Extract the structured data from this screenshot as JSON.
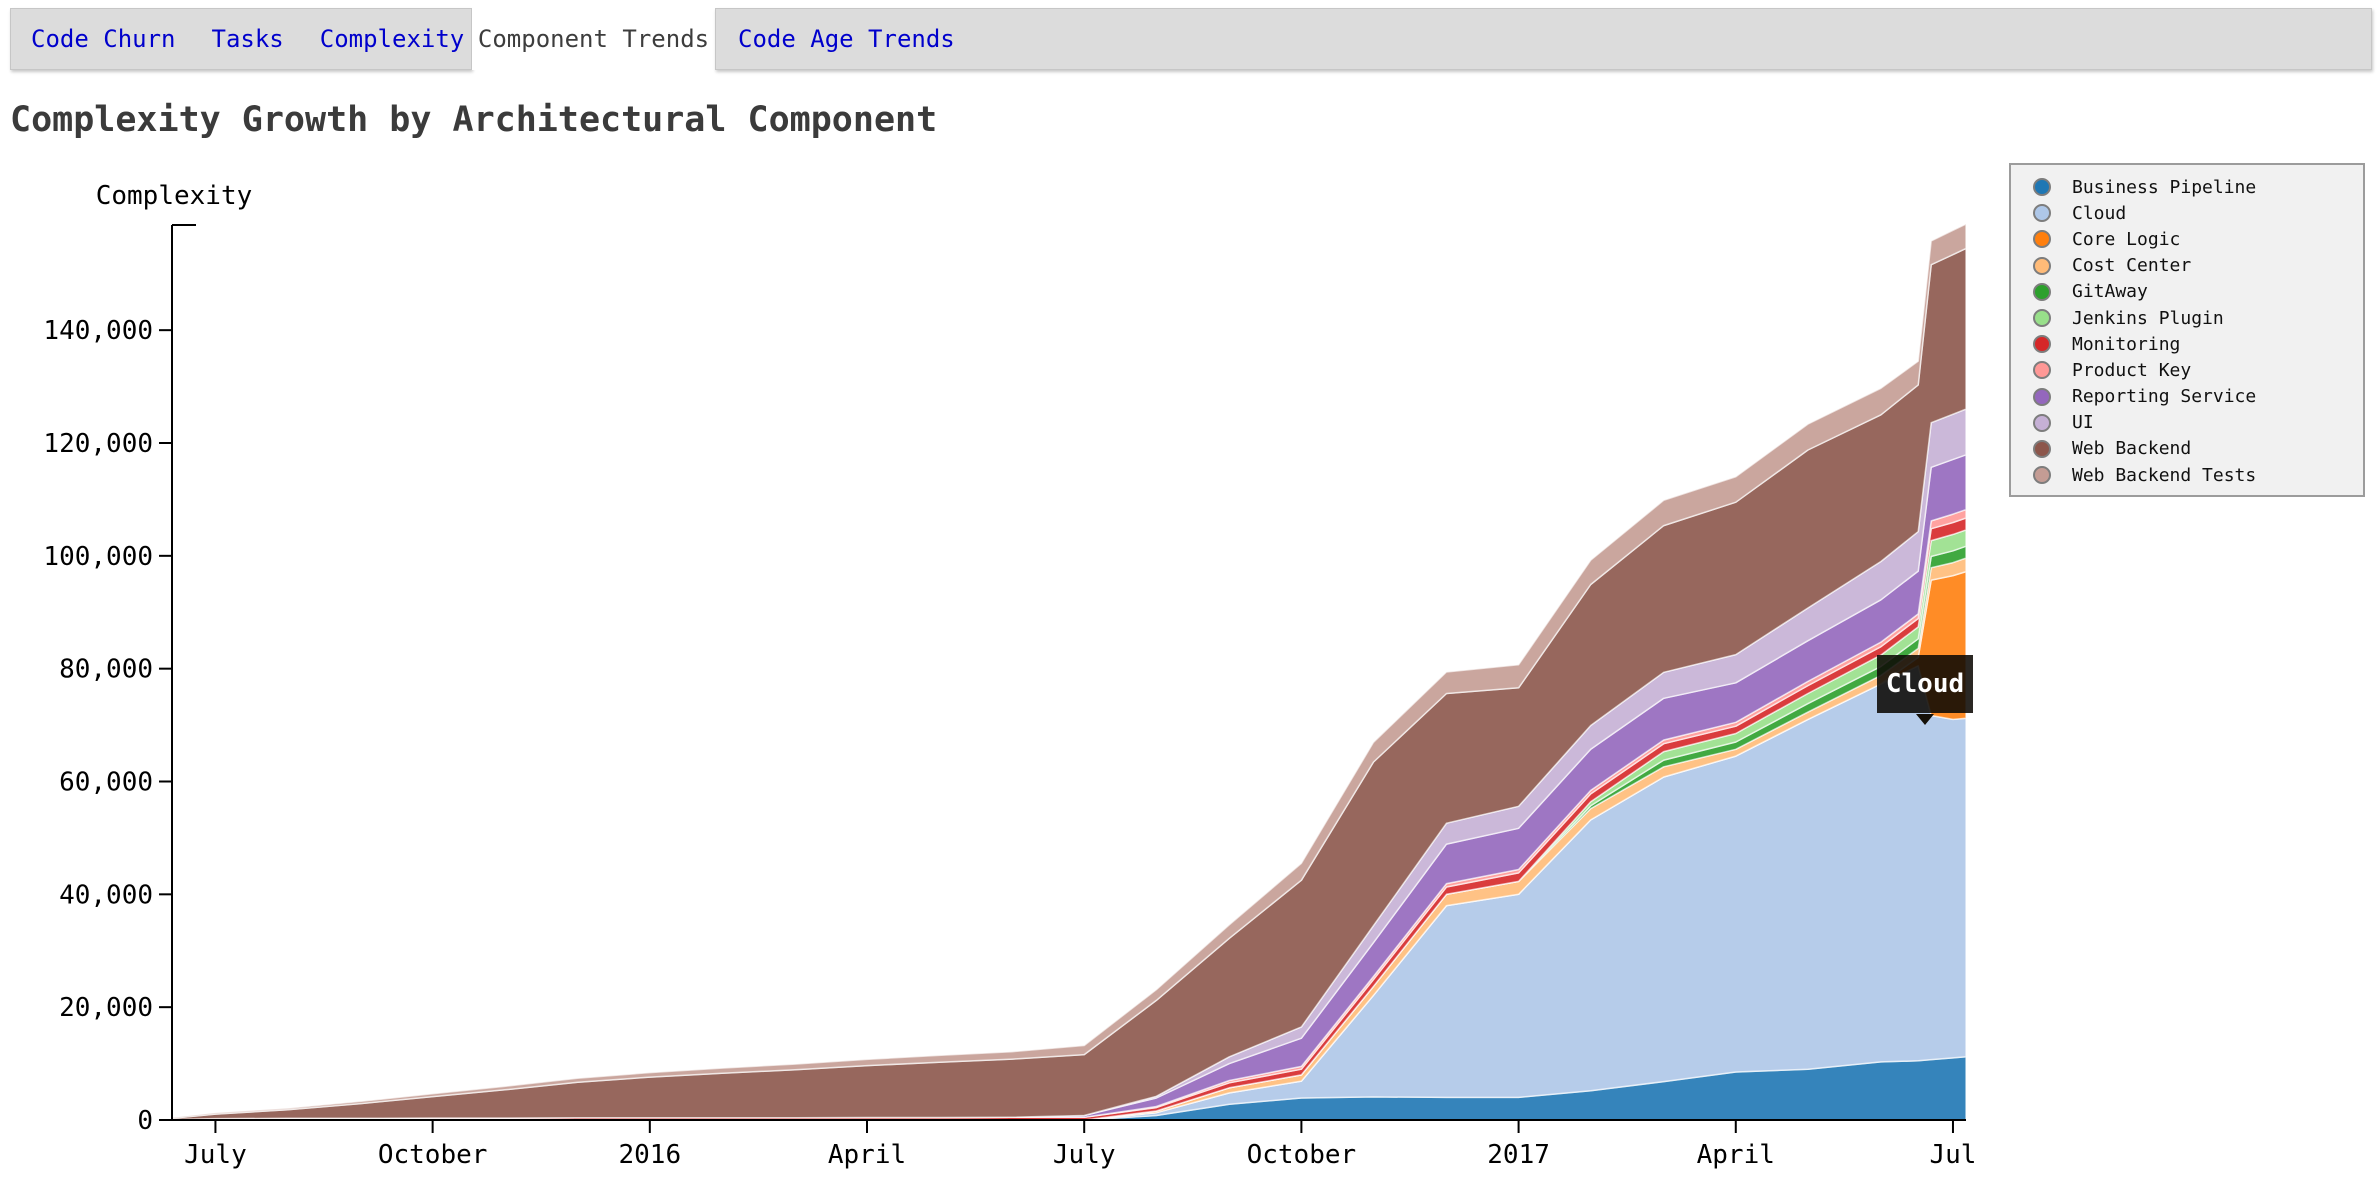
{
  "tabs": {
    "items": [
      {
        "label": "Code Churn",
        "active": false
      },
      {
        "label": "Tasks",
        "active": false
      },
      {
        "label": "Complexity",
        "active": false
      },
      {
        "label": "Component Trends",
        "active": true
      },
      {
        "label": "Code Age Trends",
        "active": false
      }
    ]
  },
  "title": "Complexity Growth by Architectural Component",
  "tooltip": {
    "label": "Cloud"
  },
  "colors": {
    "tab_link": "#0000cc",
    "tab_active_text": "#3d3d3d",
    "tab_bar_bg": "#dcdcdc",
    "axis": "#000000",
    "tooltip_bg": "#151008",
    "legend_bg": "#f1f1f1",
    "legend_border": "#9c9c9c"
  },
  "chart_data": {
    "type": "area",
    "stacked": true,
    "title": "Complexity Growth by Architectural Component",
    "ylabel": "Complexity",
    "xlabel": "",
    "grid": false,
    "legend_position": "top-right",
    "ylim": [
      0,
      158640
    ],
    "xlim": [
      2015.45,
      2017.515
    ],
    "x": [
      2015.45,
      2015.5,
      2015.583,
      2015.667,
      2015.75,
      2015.833,
      2015.917,
      2016.0,
      2016.083,
      2016.167,
      2016.25,
      2016.333,
      2016.417,
      2016.5,
      2016.583,
      2016.667,
      2016.75,
      2016.833,
      2016.917,
      2017.0,
      2017.083,
      2017.167,
      2017.25,
      2017.333,
      2017.417,
      2017.46,
      2017.475,
      2017.5,
      2017.515
    ],
    "x_ticks": [
      {
        "value": 2015.5,
        "label": "July"
      },
      {
        "value": 2015.75,
        "label": "October"
      },
      {
        "value": 2016.0,
        "label": "2016"
      },
      {
        "value": 2016.25,
        "label": "April"
      },
      {
        "value": 2016.5,
        "label": "July"
      },
      {
        "value": 2016.75,
        "label": "October"
      },
      {
        "value": 2017.0,
        "label": "2017"
      },
      {
        "value": 2017.25,
        "label": "April"
      },
      {
        "value": 2017.5,
        "label": "Jul"
      }
    ],
    "y_ticks": [
      {
        "value": 0,
        "label": "0"
      },
      {
        "value": 20000,
        "label": "20,000"
      },
      {
        "value": 40000,
        "label": "40,000"
      },
      {
        "value": 60000,
        "label": "60,000"
      },
      {
        "value": 80000,
        "label": "80,000"
      },
      {
        "value": 100000,
        "label": "100,000"
      },
      {
        "value": 120000,
        "label": "120,000"
      },
      {
        "value": 140000,
        "label": "140,000"
      }
    ],
    "series": [
      {
        "name": "Business Pipeline",
        "color": "#1f77b4",
        "values": [
          0,
          0,
          0,
          0,
          0,
          0,
          0,
          0,
          0,
          0,
          0,
          0,
          0,
          0,
          800,
          2800,
          3900,
          4100,
          4000,
          4000,
          5200,
          6800,
          8500,
          9000,
          10300,
          10500,
          10700,
          11000,
          11200
        ]
      },
      {
        "name": "Cloud",
        "color": "#aec7e8",
        "values": [
          0,
          0,
          0,
          0,
          0,
          0,
          0,
          0,
          0,
          0,
          0,
          0,
          0,
          0,
          500,
          2000,
          3000,
          18000,
          34000,
          36000,
          48000,
          54000,
          56000,
          62000,
          67000,
          70000,
          61000,
          60000,
          60000
        ]
      },
      {
        "name": "Core Logic",
        "color": "#ff7f0e",
        "values": [
          0,
          0,
          0,
          0,
          0,
          0,
          0,
          0,
          0,
          0,
          0,
          0,
          0,
          0,
          0,
          0,
          0,
          0,
          0,
          0,
          0,
          0,
          0,
          0,
          0,
          1500,
          24000,
          25500,
          26000
        ]
      },
      {
        "name": "Cost Center",
        "color": "#ffbb78",
        "values": [
          0,
          0,
          0,
          0,
          0,
          0,
          0,
          0,
          0,
          0,
          0,
          0,
          0,
          0,
          300,
          900,
          1100,
          1600,
          2000,
          2300,
          2000,
          1800,
          1200,
          1300,
          1500,
          1600,
          2200,
          2300,
          2400
        ]
      },
      {
        "name": "GitAway",
        "color": "#2ca02c",
        "values": [
          0,
          0,
          0,
          0,
          0,
          0,
          0,
          0,
          0,
          0,
          0,
          0,
          0,
          0,
          0,
          0,
          0,
          0,
          0,
          0,
          500,
          1200,
          1300,
          1500,
          1600,
          1700,
          2000,
          2100,
          2100
        ]
      },
      {
        "name": "Jenkins Plugin",
        "color": "#98df8a",
        "values": [
          0,
          0,
          0,
          0,
          0,
          0,
          0,
          0,
          0,
          0,
          0,
          0,
          0,
          0,
          0,
          0,
          0,
          0,
          0,
          0,
          700,
          1500,
          1500,
          1800,
          2000,
          2100,
          2800,
          2900,
          2900
        ]
      },
      {
        "name": "Monitoring",
        "color": "#d62728",
        "values": [
          100,
          250,
          300,
          300,
          350,
          350,
          400,
          400,
          400,
          400,
          450,
          450,
          500,
          500,
          600,
          900,
          1000,
          1200,
          1300,
          1500,
          1400,
          1400,
          1300,
          1400,
          1500,
          1500,
          2100,
          2100,
          2100
        ]
      },
      {
        "name": "Product Key",
        "color": "#ff9896",
        "values": [
          0,
          0,
          0,
          0,
          0,
          0,
          0,
          0,
          0,
          0,
          0,
          0,
          0,
          0,
          200,
          400,
          500,
          550,
          600,
          600,
          620,
          650,
          700,
          750,
          800,
          800,
          1400,
          1500,
          1500
        ]
      },
      {
        "name": "Reporting Service",
        "color": "#9467bd",
        "values": [
          0,
          0,
          0,
          0,
          0,
          0,
          0,
          0,
          0,
          0,
          0,
          0,
          0,
          300,
          1500,
          3000,
          5000,
          6000,
          7000,
          7300,
          7300,
          7400,
          7000,
          7200,
          7500,
          7600,
          9500,
          9700,
          9700
        ]
      },
      {
        "name": "UI",
        "color": "#c5b0d5",
        "values": [
          0,
          0,
          0,
          0,
          0,
          0,
          0,
          0,
          0,
          0,
          0,
          0,
          0,
          0,
          300,
          1200,
          2000,
          3000,
          3700,
          3900,
          4200,
          4600,
          5000,
          5800,
          6800,
          7000,
          7900,
          8000,
          8100
        ]
      },
      {
        "name": "Web Backend",
        "color": "#8c564b",
        "values": [
          200,
          800,
          1500,
          2600,
          3800,
          5000,
          6300,
          7200,
          7900,
          8500,
          9200,
          9800,
          10300,
          10800,
          17000,
          21000,
          26000,
          29000,
          23000,
          21000,
          25000,
          26000,
          27000,
          28000,
          26000,
          26000,
          28000,
          28300,
          28500
        ]
      },
      {
        "name": "Web Backend Tests",
        "color": "#c49c94",
        "values": [
          100,
          200,
          300,
          400,
          500,
          600,
          700,
          800,
          900,
          1000,
          1100,
          1200,
          1300,
          1600,
          1900,
          2400,
          3000,
          3500,
          3800,
          4100,
          4300,
          4500,
          4500,
          4600,
          4700,
          4200,
          4200,
          4300,
          4300
        ]
      }
    ]
  }
}
